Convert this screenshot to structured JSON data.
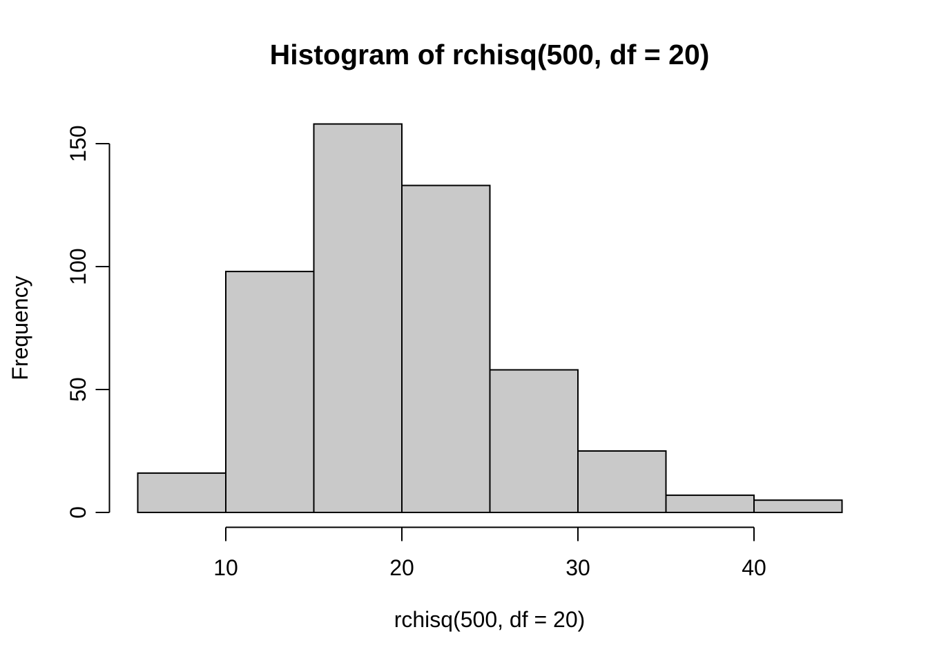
{
  "chart_data": {
    "type": "bar",
    "subtype": "histogram",
    "title": "Histogram of rchisq(500, df = 20)",
    "xlabel": "rchisq(500, df = 20)",
    "ylabel": "Frequency",
    "breaks": [
      5,
      10,
      15,
      20,
      25,
      30,
      35,
      40,
      45
    ],
    "counts": [
      16,
      98,
      158,
      133,
      58,
      25,
      7,
      5
    ],
    "x_ticks": [
      10,
      20,
      30,
      40
    ],
    "y_ticks": [
      0,
      50,
      100,
      150
    ],
    "xlim": [
      3.4,
      46.6
    ],
    "ylim": [
      0,
      158
    ],
    "grid": false,
    "legend": "none",
    "colors": {
      "bar_fill": "#C9C9C9",
      "bar_stroke": "#000000",
      "axis": "#000000",
      "text": "#000000",
      "background": "#FFFFFF"
    }
  }
}
